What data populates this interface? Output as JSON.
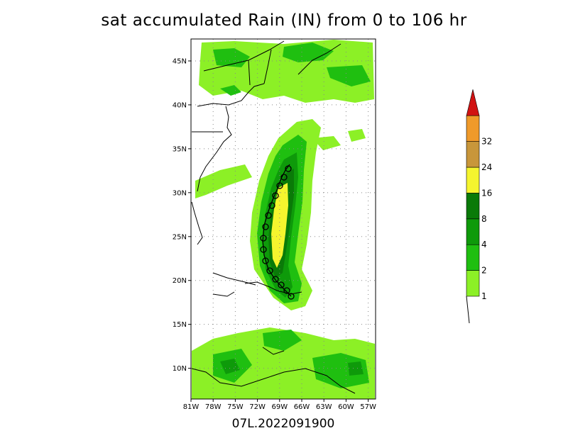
{
  "title": "sat accumulated Rain (IN) from 0 to 106 hr",
  "footer": "07L.2022091900",
  "lat_labels": [
    "45N",
    "40N",
    "35N",
    "30N",
    "25N",
    "20N",
    "15N",
    "10N"
  ],
  "lon_labels": [
    "81W",
    "78W",
    "75W",
    "72W",
    "69W",
    "66W",
    "63W",
    "60W",
    "57W"
  ],
  "colorbar": {
    "levels": [
      "1",
      "2",
      "4",
      "8",
      "16",
      "24",
      "32"
    ],
    "colors": [
      "#8cf026",
      "#1fbf10",
      "#0e9a0a",
      "#0a7a08",
      "#f5f52e",
      "#c8963a",
      "#ef9a2a",
      "#d11212"
    ]
  },
  "map": {
    "lon_range": [
      -81,
      -56
    ],
    "lat_range": [
      6.5,
      47.5
    ]
  }
}
